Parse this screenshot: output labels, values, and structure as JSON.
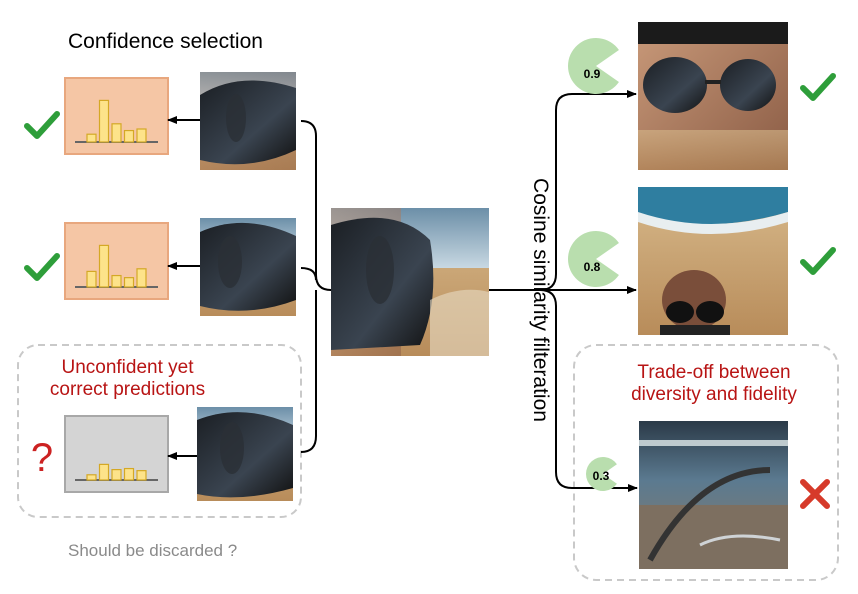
{
  "left": {
    "title": "Confidence selection",
    "unconfident_title_line1": "Unconfident yet",
    "unconfident_title_line2": "correct predictions",
    "discard_note": "Should be discarded ?",
    "bar_colors": {
      "confident_box_fill": "#f5c6a5",
      "confident_box_stroke": "#e8a77e",
      "unconfident_box_fill": "#d4d4d4",
      "unconfident_box_stroke": "#a8a8a8",
      "bar_fill": "#fde38a",
      "bar_stroke": "#d4a826"
    },
    "items": [
      {
        "bars": [
          0.15,
          0.8,
          0.35,
          0.22,
          0.25
        ],
        "mark": "check-icon",
        "mark_color": "#2e9e3a",
        "confident": true
      },
      {
        "bars": [
          0.3,
          0.8,
          0.22,
          0.18,
          0.35
        ],
        "mark": "check-icon",
        "mark_color": "#2e9e3a",
        "confident": true
      },
      {
        "bars": [
          0.1,
          0.3,
          0.2,
          0.22,
          0.18
        ],
        "mark": "question-icon",
        "mark_color": "#cc2222",
        "confident": false
      }
    ]
  },
  "center": {
    "label": "Cosine similarity filteration"
  },
  "right": {
    "tradeoff_title_line1": "Trade-off between",
    "tradeoff_title_line2": "diversity and fidelity",
    "items": [
      {
        "score": "0.9",
        "mark": "check-icon",
        "mark_color": "#2e9e3a"
      },
      {
        "score": "0.8",
        "mark": "check-icon",
        "mark_color": "#2e9e3a"
      },
      {
        "score": "0.3",
        "mark": "cross-icon",
        "mark_color": "#d63a2a"
      }
    ],
    "pacman_color": "#b9deae"
  }
}
